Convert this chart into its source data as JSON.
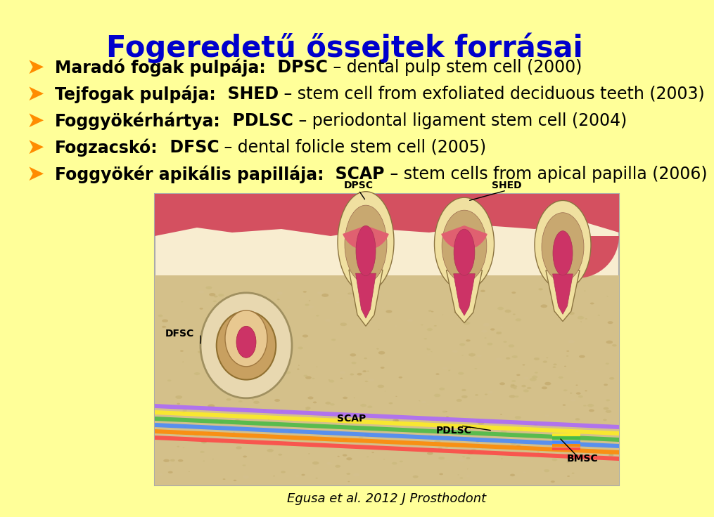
{
  "background_color": "#FFFF99",
  "title": "Fogeredetű őssejtek forrásai",
  "title_color": "#0000CC",
  "title_fontsize": 30,
  "bullet_color": "#FF8C00",
  "bullet_symbol": "➤",
  "text_color": "#000000",
  "lines": [
    {
      "bold_prefix": "Maradó fogak pulpája:",
      "abbr": "  DPSC",
      "rest": " – dental pulp stem cell (2000)"
    },
    {
      "bold_prefix": "Tejfogak pulpája:",
      "abbr": "  SHED",
      "rest": " – stem cell from exfoliated deciduous teeth (2003)"
    },
    {
      "bold_prefix": "Foggyökérhártya:",
      "abbr": "  PDLSC",
      "rest": " – periodontal ligament stem cell (2004)"
    },
    {
      "bold_prefix": "Fogzacskó:",
      "abbr": "  DFSC",
      "rest": " – dental folicle stem cell (2005)"
    },
    {
      "bold_prefix": "Foggyökér apikális papillája:",
      "abbr": "  SCAP",
      "rest": " – stem cells from apical papilla (2006)"
    }
  ],
  "caption": "Egusa et al. 2012 J Prosthodont",
  "fig_width": 9.6,
  "fig_height": 7.16
}
